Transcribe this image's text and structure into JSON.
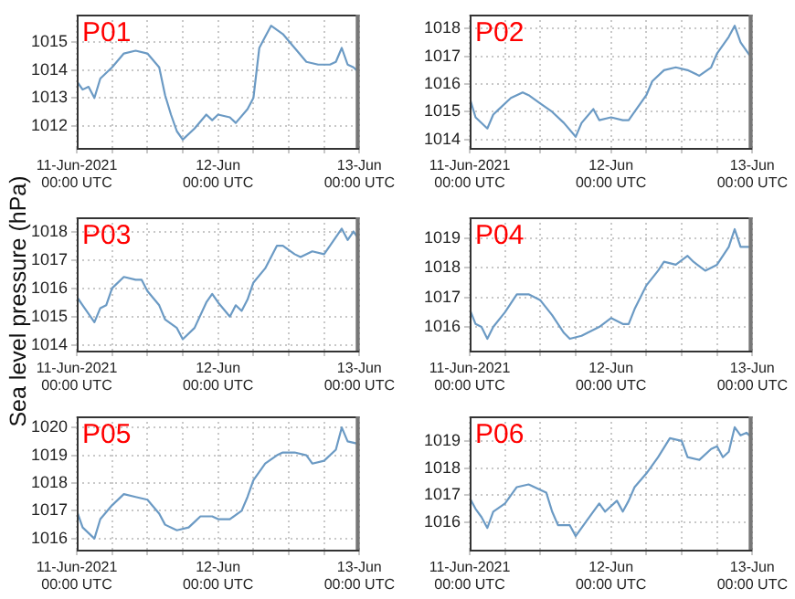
{
  "chart_data": [
    {
      "type": "line",
      "title": "P01",
      "color": "#6b9ac4",
      "grid": true,
      "legend": false,
      "xlim": [
        "2021-06-11T00:00",
        "2021-06-13T00:00"
      ],
      "ylim": [
        1011.2,
        1016.0
      ],
      "yticks": [
        1012,
        1013,
        1014,
        1015
      ],
      "xticks": [
        {
          "value": "2021-06-11T00:00",
          "label": "11-Jun-2021\n00:00 UTC"
        },
        {
          "value": "2021-06-11T06:00",
          "label": null
        },
        {
          "value": "2021-06-11T12:00",
          "label": null
        },
        {
          "value": "2021-06-11T18:00",
          "label": null
        },
        {
          "value": "2021-06-12T00:00",
          "label": "12-Jun\n00:00 UTC"
        },
        {
          "value": "2021-06-12T06:00",
          "label": null
        },
        {
          "value": "2021-06-12T12:00",
          "label": null
        },
        {
          "value": "2021-06-12T18:00",
          "label": null
        },
        {
          "value": "2021-06-13T00:00",
          "label": "13-Jun\n00:00 UTC"
        }
      ],
      "x": [
        "2021-06-11T00:00",
        "2021-06-11T01:00",
        "2021-06-11T02:00",
        "2021-06-11T03:00",
        "2021-06-11T04:00",
        "2021-06-11T06:00",
        "2021-06-11T08:00",
        "2021-06-11T10:00",
        "2021-06-11T12:00",
        "2021-06-11T14:00",
        "2021-06-11T15:00",
        "2021-06-11T16:00",
        "2021-06-11T17:00",
        "2021-06-11T18:00",
        "2021-06-11T20:00",
        "2021-06-11T22:00",
        "2021-06-11T23:00",
        "2021-06-12T00:00",
        "2021-06-12T02:00",
        "2021-06-12T03:00",
        "2021-06-12T05:00",
        "2021-06-12T06:00",
        "2021-06-12T07:00",
        "2021-06-12T08:00",
        "2021-06-12T09:00",
        "2021-06-12T11:00",
        "2021-06-12T13:00",
        "2021-06-12T15:00",
        "2021-06-12T17:00",
        "2021-06-12T19:00",
        "2021-06-12T20:00",
        "2021-06-12T21:00",
        "2021-06-12T22:00",
        "2021-06-12T23:00",
        "2021-06-13T00:00"
      ],
      "values": [
        1013.6,
        1013.3,
        1013.4,
        1013.0,
        1013.7,
        1014.1,
        1014.6,
        1014.7,
        1014.6,
        1014.1,
        1013.1,
        1012.4,
        1011.8,
        1011.5,
        1011.9,
        1012.4,
        1012.2,
        1012.4,
        1012.3,
        1012.1,
        1012.6,
        1013.0,
        1014.8,
        1015.2,
        1015.6,
        1015.3,
        1014.8,
        1014.3,
        1014.2,
        1014.2,
        1014.3,
        1014.8,
        1014.2,
        1014.1,
        1013.9
      ]
    },
    {
      "type": "line",
      "title": "P02",
      "color": "#6b9ac4",
      "grid": true,
      "legend": false,
      "xlim": [
        "2021-06-11T00:00",
        "2021-06-13T00:00"
      ],
      "ylim": [
        1013.7,
        1018.5
      ],
      "yticks": [
        1014,
        1015,
        1016,
        1017,
        1018
      ],
      "xticks": [
        {
          "value": "2021-06-11T00:00",
          "label": "11-Jun-2021\n00:00 UTC"
        },
        {
          "value": "2021-06-11T06:00",
          "label": null
        },
        {
          "value": "2021-06-11T12:00",
          "label": null
        },
        {
          "value": "2021-06-11T18:00",
          "label": null
        },
        {
          "value": "2021-06-12T00:00",
          "label": "12-Jun\n00:00 UTC"
        },
        {
          "value": "2021-06-12T06:00",
          "label": null
        },
        {
          "value": "2021-06-12T12:00",
          "label": null
        },
        {
          "value": "2021-06-12T18:00",
          "label": null
        },
        {
          "value": "2021-06-13T00:00",
          "label": "13-Jun\n00:00 UTC"
        }
      ],
      "x": [
        "2021-06-11T00:00",
        "2021-06-11T01:00",
        "2021-06-11T03:00",
        "2021-06-11T04:00",
        "2021-06-11T05:00",
        "2021-06-11T07:00",
        "2021-06-11T09:00",
        "2021-06-11T10:00",
        "2021-06-11T12:00",
        "2021-06-11T14:00",
        "2021-06-11T16:00",
        "2021-06-11T18:00",
        "2021-06-11T19:00",
        "2021-06-11T21:00",
        "2021-06-11T22:00",
        "2021-06-12T00:00",
        "2021-06-12T02:00",
        "2021-06-12T03:00",
        "2021-06-12T04:00",
        "2021-06-12T06:00",
        "2021-06-12T07:00",
        "2021-06-12T09:00",
        "2021-06-12T11:00",
        "2021-06-12T13:00",
        "2021-06-12T15:00",
        "2021-06-12T17:00",
        "2021-06-12T18:00",
        "2021-06-12T20:00",
        "2021-06-12T21:00",
        "2021-06-12T22:00",
        "2021-06-12T23:00",
        "2021-06-13T00:00"
      ],
      "values": [
        1015.5,
        1014.8,
        1014.4,
        1014.9,
        1015.1,
        1015.5,
        1015.7,
        1015.6,
        1015.3,
        1015.0,
        1014.6,
        1014.1,
        1014.6,
        1015.1,
        1014.7,
        1014.8,
        1014.7,
        1014.7,
        1015.0,
        1015.6,
        1016.1,
        1016.5,
        1016.6,
        1016.5,
        1016.3,
        1016.6,
        1017.1,
        1017.7,
        1018.1,
        1017.5,
        1017.2,
        1016.9
      ]
    },
    {
      "type": "line",
      "title": "P03",
      "ylabel": "Sea level pressure (hPa)",
      "color": "#6b9ac4",
      "grid": true,
      "legend": false,
      "xlim": [
        "2021-06-11T00:00",
        "2021-06-13T00:00"
      ],
      "ylim": [
        1013.8,
        1018.5
      ],
      "yticks": [
        1014,
        1015,
        1016,
        1017,
        1018
      ],
      "xticks": [
        {
          "value": "2021-06-11T00:00",
          "label": "11-Jun-2021\n00:00 UTC"
        },
        {
          "value": "2021-06-11T06:00",
          "label": null
        },
        {
          "value": "2021-06-11T12:00",
          "label": null
        },
        {
          "value": "2021-06-11T18:00",
          "label": null
        },
        {
          "value": "2021-06-12T00:00",
          "label": "12-Jun\n00:00 UTC"
        },
        {
          "value": "2021-06-12T06:00",
          "label": null
        },
        {
          "value": "2021-06-12T12:00",
          "label": null
        },
        {
          "value": "2021-06-12T18:00",
          "label": null
        },
        {
          "value": "2021-06-13T00:00",
          "label": "13-Jun\n00:00 UTC"
        }
      ],
      "x": [
        "2021-06-11T00:00",
        "2021-06-11T01:00",
        "2021-06-11T03:00",
        "2021-06-11T04:00",
        "2021-06-11T05:00",
        "2021-06-11T06:00",
        "2021-06-11T08:00",
        "2021-06-11T10:00",
        "2021-06-11T11:00",
        "2021-06-11T12:00",
        "2021-06-11T14:00",
        "2021-06-11T15:00",
        "2021-06-11T17:00",
        "2021-06-11T18:00",
        "2021-06-11T20:00",
        "2021-06-11T22:00",
        "2021-06-11T23:00",
        "2021-06-12T00:00",
        "2021-06-12T02:00",
        "2021-06-12T03:00",
        "2021-06-12T04:00",
        "2021-06-12T05:00",
        "2021-06-12T06:00",
        "2021-06-12T08:00",
        "2021-06-12T10:00",
        "2021-06-12T11:00",
        "2021-06-12T13:00",
        "2021-06-12T14:00",
        "2021-06-12T16:00",
        "2021-06-12T18:00",
        "2021-06-12T19:00",
        "2021-06-12T21:00",
        "2021-06-12T22:00",
        "2021-06-12T23:00",
        "2021-06-13T00:00"
      ],
      "values": [
        1015.7,
        1015.4,
        1014.8,
        1015.3,
        1015.4,
        1016.0,
        1016.4,
        1016.3,
        1016.3,
        1015.9,
        1015.4,
        1014.9,
        1014.6,
        1014.2,
        1014.6,
        1015.5,
        1015.8,
        1015.5,
        1015.0,
        1015.4,
        1015.2,
        1015.6,
        1016.2,
        1016.7,
        1017.5,
        1017.5,
        1017.2,
        1017.1,
        1017.3,
        1017.2,
        1017.5,
        1018.1,
        1017.7,
        1018.0,
        1017.7
      ]
    },
    {
      "type": "line",
      "title": "P04",
      "color": "#6b9ac4",
      "grid": true,
      "legend": false,
      "xlim": [
        "2021-06-11T00:00",
        "2021-06-13T00:00"
      ],
      "ylim": [
        1015.2,
        1019.7
      ],
      "yticks": [
        1016,
        1017,
        1018,
        1019
      ],
      "xticks": [
        {
          "value": "2021-06-11T00:00",
          "label": "11-Jun-2021\n00:00 UTC"
        },
        {
          "value": "2021-06-11T06:00",
          "label": null
        },
        {
          "value": "2021-06-11T12:00",
          "label": null
        },
        {
          "value": "2021-06-11T18:00",
          "label": null
        },
        {
          "value": "2021-06-12T00:00",
          "label": "12-Jun\n00:00 UTC"
        },
        {
          "value": "2021-06-12T06:00",
          "label": null
        },
        {
          "value": "2021-06-12T12:00",
          "label": null
        },
        {
          "value": "2021-06-12T18:00",
          "label": null
        },
        {
          "value": "2021-06-13T00:00",
          "label": "13-Jun\n00:00 UTC"
        }
      ],
      "x": [
        "2021-06-11T00:00",
        "2021-06-11T01:00",
        "2021-06-11T02:00",
        "2021-06-11T03:00",
        "2021-06-11T04:00",
        "2021-06-11T06:00",
        "2021-06-11T08:00",
        "2021-06-11T10:00",
        "2021-06-11T11:00",
        "2021-06-11T12:00",
        "2021-06-11T14:00",
        "2021-06-11T16:00",
        "2021-06-11T17:00",
        "2021-06-11T19:00",
        "2021-06-11T22:00",
        "2021-06-12T00:00",
        "2021-06-12T02:00",
        "2021-06-12T03:00",
        "2021-06-12T04:00",
        "2021-06-12T06:00",
        "2021-06-12T08:00",
        "2021-06-12T09:00",
        "2021-06-12T11:00",
        "2021-06-12T13:00",
        "2021-06-12T14:00",
        "2021-06-12T16:00",
        "2021-06-12T18:00",
        "2021-06-12T20:00",
        "2021-06-12T21:00",
        "2021-06-12T22:00",
        "2021-06-13T00:00"
      ],
      "values": [
        1016.6,
        1016.1,
        1016.0,
        1015.6,
        1016.0,
        1016.5,
        1017.1,
        1017.1,
        1017.0,
        1016.9,
        1016.4,
        1015.8,
        1015.6,
        1015.7,
        1016.0,
        1016.3,
        1016.1,
        1016.1,
        1016.6,
        1017.4,
        1017.9,
        1018.2,
        1018.1,
        1018.4,
        1018.2,
        1017.9,
        1018.1,
        1018.7,
        1019.3,
        1018.7,
        1018.7
      ]
    },
    {
      "type": "line",
      "title": "P05",
      "color": "#6b9ac4",
      "grid": true,
      "legend": false,
      "xlim": [
        "2021-06-11T00:00",
        "2021-06-13T00:00"
      ],
      "ylim": [
        1015.6,
        1020.4
      ],
      "yticks": [
        1016,
        1017,
        1018,
        1019,
        1020
      ],
      "xticks": [
        {
          "value": "2021-06-11T00:00",
          "label": "11-Jun-2021\n00:00 UTC"
        },
        {
          "value": "2021-06-11T06:00",
          "label": null
        },
        {
          "value": "2021-06-11T12:00",
          "label": null
        },
        {
          "value": "2021-06-11T18:00",
          "label": null
        },
        {
          "value": "2021-06-12T00:00",
          "label": "12-Jun\n00:00 UTC"
        },
        {
          "value": "2021-06-12T06:00",
          "label": null
        },
        {
          "value": "2021-06-12T12:00",
          "label": null
        },
        {
          "value": "2021-06-12T18:00",
          "label": null
        },
        {
          "value": "2021-06-13T00:00",
          "label": "13-Jun\n00:00 UTC"
        }
      ],
      "x": [
        "2021-06-11T00:00",
        "2021-06-11T01:00",
        "2021-06-11T03:00",
        "2021-06-11T04:00",
        "2021-06-11T06:00",
        "2021-06-11T08:00",
        "2021-06-11T10:00",
        "2021-06-11T12:00",
        "2021-06-11T14:00",
        "2021-06-11T15:00",
        "2021-06-11T17:00",
        "2021-06-11T19:00",
        "2021-06-11T20:00",
        "2021-06-11T21:00",
        "2021-06-11T23:00",
        "2021-06-12T00:00",
        "2021-06-12T02:00",
        "2021-06-12T04:00",
        "2021-06-12T05:00",
        "2021-06-12T06:00",
        "2021-06-12T08:00",
        "2021-06-12T10:00",
        "2021-06-12T11:00",
        "2021-06-12T13:00",
        "2021-06-12T15:00",
        "2021-06-12T16:00",
        "2021-06-12T18:00",
        "2021-06-12T20:00",
        "2021-06-12T21:00",
        "2021-06-12T22:00",
        "2021-06-13T00:00"
      ],
      "values": [
        1017.0,
        1016.4,
        1016.0,
        1016.7,
        1017.2,
        1017.6,
        1017.5,
        1017.4,
        1016.9,
        1016.5,
        1016.3,
        1016.4,
        1016.6,
        1016.8,
        1016.8,
        1016.7,
        1016.7,
        1017.0,
        1017.5,
        1018.1,
        1018.7,
        1019.0,
        1019.1,
        1019.1,
        1019.0,
        1018.7,
        1018.8,
        1019.2,
        1020.0,
        1019.5,
        1019.4
      ]
    },
    {
      "type": "line",
      "title": "P06",
      "color": "#6b9ac4",
      "grid": true,
      "legend": false,
      "xlim": [
        "2021-06-11T00:00",
        "2021-06-13T00:00"
      ],
      "ylim": [
        1015.0,
        1019.9
      ],
      "yticks": [
        1016,
        1017,
        1018,
        1019
      ],
      "xticks": [
        {
          "value": "2021-06-11T00:00",
          "label": "11-Jun-2021\n00:00 UTC"
        },
        {
          "value": "2021-06-11T06:00",
          "label": null
        },
        {
          "value": "2021-06-11T12:00",
          "label": null
        },
        {
          "value": "2021-06-11T18:00",
          "label": null
        },
        {
          "value": "2021-06-12T00:00",
          "label": "12-Jun\n00:00 UTC"
        },
        {
          "value": "2021-06-12T06:00",
          "label": null
        },
        {
          "value": "2021-06-12T12:00",
          "label": null
        },
        {
          "value": "2021-06-12T18:00",
          "label": null
        },
        {
          "value": "2021-06-13T00:00",
          "label": "13-Jun\n00:00 UTC"
        }
      ],
      "x": [
        "2021-06-11T00:00",
        "2021-06-11T01:00",
        "2021-06-11T02:00",
        "2021-06-11T03:00",
        "2021-06-11T04:00",
        "2021-06-11T06:00",
        "2021-06-11T08:00",
        "2021-06-11T10:00",
        "2021-06-11T11:00",
        "2021-06-11T13:00",
        "2021-06-11T14:00",
        "2021-06-11T15:00",
        "2021-06-11T17:00",
        "2021-06-11T18:00",
        "2021-06-11T20:00",
        "2021-06-11T22:00",
        "2021-06-11T23:00",
        "2021-06-12T01:00",
        "2021-06-12T02:00",
        "2021-06-12T03:00",
        "2021-06-12T04:00",
        "2021-06-12T06:00",
        "2021-06-12T08:00",
        "2021-06-12T10:00",
        "2021-06-12T12:00",
        "2021-06-12T13:00",
        "2021-06-12T15:00",
        "2021-06-12T17:00",
        "2021-06-12T18:00",
        "2021-06-12T19:00",
        "2021-06-12T20:00",
        "2021-06-12T21:00",
        "2021-06-12T22:00",
        "2021-06-12T23:00",
        "2021-06-13T00:00"
      ],
      "values": [
        1016.9,
        1016.5,
        1016.2,
        1015.8,
        1016.4,
        1016.7,
        1017.3,
        1017.4,
        1017.3,
        1017.1,
        1016.4,
        1015.9,
        1015.9,
        1015.5,
        1016.1,
        1016.7,
        1016.4,
        1016.8,
        1016.4,
        1016.8,
        1017.3,
        1017.8,
        1018.4,
        1019.1,
        1019.0,
        1018.4,
        1018.3,
        1018.7,
        1018.8,
        1018.4,
        1018.6,
        1019.5,
        1019.2,
        1019.3,
        1019.1
      ]
    }
  ]
}
